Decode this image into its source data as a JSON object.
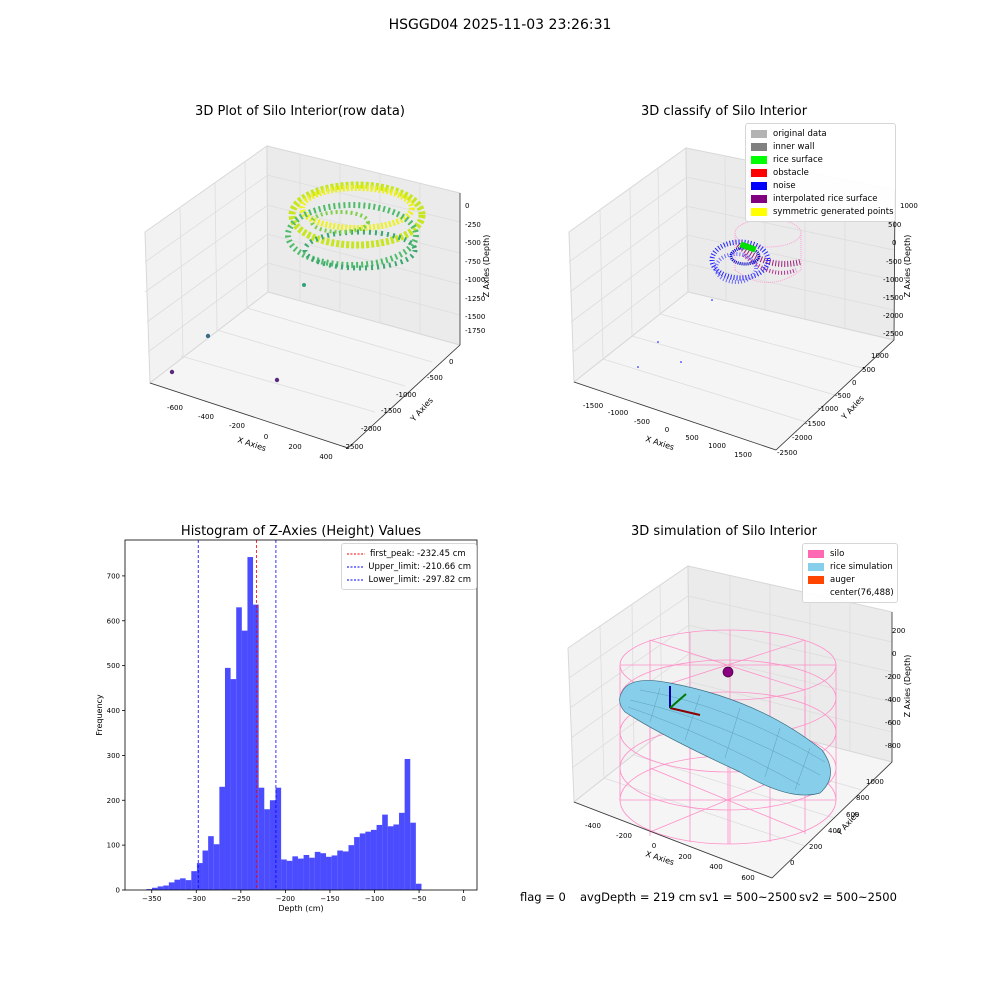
{
  "suptitle": "HSGGD04 2025-11-03 23:26:31",
  "panels": {
    "raw": {
      "title": "3D Plot of Silo Interior(row data)",
      "xlabel": "X Axies",
      "ylabel": "Y Axies",
      "zlabel": "Z Axies (Depth)",
      "xticks": [
        "-600",
        "-400",
        "-200",
        "0",
        "200",
        "400"
      ],
      "yticks": [
        "0",
        "-500",
        "-1000",
        "-1500",
        "-2000",
        "-2500"
      ],
      "zticks": [
        "0",
        "-250",
        "-500",
        "-750",
        "-1000",
        "-1250",
        "-1500",
        "-1750"
      ]
    },
    "classify": {
      "title": "3D classify of Silo Interior",
      "xlabel": "X Axies",
      "ylabel": "Y Axies",
      "zlabel": "Z Axies (Depth)",
      "xticks": [
        "-1500",
        "-1000",
        "-500",
        "0",
        "500",
        "1000",
        "1500"
      ],
      "yticks": [
        "1000",
        "500",
        "0",
        "-500",
        "-1000",
        "-1500",
        "-2000",
        "-2500"
      ],
      "zticks": [
        "1000",
        "500",
        "0",
        "-500",
        "-1000",
        "-1500",
        "-2000",
        "-2500"
      ],
      "legend": [
        {
          "label": "original data",
          "color": "#b3b3b3"
        },
        {
          "label": "inner wall",
          "color": "#808080"
        },
        {
          "label": "rice surface",
          "color": "#00ff00"
        },
        {
          "label": "obstacle",
          "color": "#ff0000"
        },
        {
          "label": "noise",
          "color": "#0000ff"
        },
        {
          "label": "interpolated rice surface",
          "color": "#800080"
        },
        {
          "label": "symmetric generated points",
          "color": "#ffff00"
        }
      ]
    },
    "simulation": {
      "title": "3D simulation of Silo Interior",
      "xlabel": "X Axies",
      "ylabel": "Y Axies",
      "zlabel": "Z Axies (Depth)",
      "xticks": [
        "-400",
        "-200",
        "0",
        "200",
        "400",
        "600"
      ],
      "yticks": [
        "0",
        "200",
        "400",
        "600",
        "800",
        "1000"
      ],
      "zticks": [
        "200",
        "0",
        "-200",
        "-400",
        "-600",
        "-800"
      ],
      "legend": [
        {
          "label": "silo",
          "color": "#ff69b4"
        },
        {
          "label": "rice simulation",
          "color": "#87ceeb"
        },
        {
          "label": "auger",
          "color": "#ff4500"
        },
        {
          "label": "center(76,488)",
          "color": ""
        }
      ]
    }
  },
  "footer": {
    "flag": "flag = 0",
    "avg": "avgDepth = 219 cm",
    "sv1": "sv1 = 500~2500",
    "sv2": "sv2 = 500~2500"
  },
  "chart_data": {
    "type": "bar",
    "title": "Histogram of Z-Axies (Height) Values",
    "xlabel": "Depth (cm)",
    "ylabel": "Frequency",
    "xlim": [
      -380,
      15
    ],
    "ylim": [
      0,
      780
    ],
    "xticks": [
      -350,
      -300,
      -250,
      -200,
      -150,
      -100,
      -50,
      0
    ],
    "yticks": [
      0,
      100,
      200,
      300,
      400,
      500,
      600,
      700
    ],
    "bar_color": "#0000ff",
    "bins_left": [
      -356,
      -349.7,
      -343.4,
      -337.1,
      -330.8,
      -324.5,
      -318.2,
      -311.9,
      -305.6,
      -299.3,
      -293,
      -286.7,
      -280.4,
      -274.1,
      -267.8,
      -261.5,
      -255.2,
      -248.9,
      -242.6,
      -236.3,
      -230,
      -223.7,
      -217.4,
      -211.1,
      -204.8,
      -198.5,
      -192.2,
      -185.9,
      -179.6,
      -173.3,
      -167,
      -160.7,
      -154.4,
      -148.1,
      -141.8,
      -135.5,
      -129.2,
      -122.9,
      -116.6,
      -110.3,
      -104,
      -97.7,
      -91.4,
      -85.1,
      -78.8,
      -72.5,
      -66.2,
      -59.9,
      -53.6,
      -47.3,
      -41,
      -34.7,
      -28.4,
      -22.1,
      -15.8,
      -9.5
    ],
    "bin_width": 6.3,
    "values": [
      2,
      5,
      8,
      10,
      17,
      23,
      26,
      22,
      42,
      60,
      88,
      120,
      102,
      230,
      495,
      470,
      630,
      578,
      742,
      636,
      228,
      180,
      200,
      228,
      68,
      65,
      75,
      70,
      78,
      72,
      85,
      82,
      74,
      77,
      88,
      86,
      100,
      118,
      126,
      130,
      134,
      145,
      168,
      142,
      146,
      172,
      292,
      150,
      14,
      0,
      0,
      0,
      0,
      0,
      0,
      0
    ],
    "reference_lines": [
      {
        "label": "first_peak: -232.45 cm",
        "x": -232.45,
        "color": "#ff0000"
      },
      {
        "label": "Upper_limit: -210.66 cm",
        "x": -210.66,
        "color": "#0000ff"
      },
      {
        "label": "Lower_limit: -297.82 cm",
        "x": -297.82,
        "color": "#0000ff"
      }
    ]
  }
}
